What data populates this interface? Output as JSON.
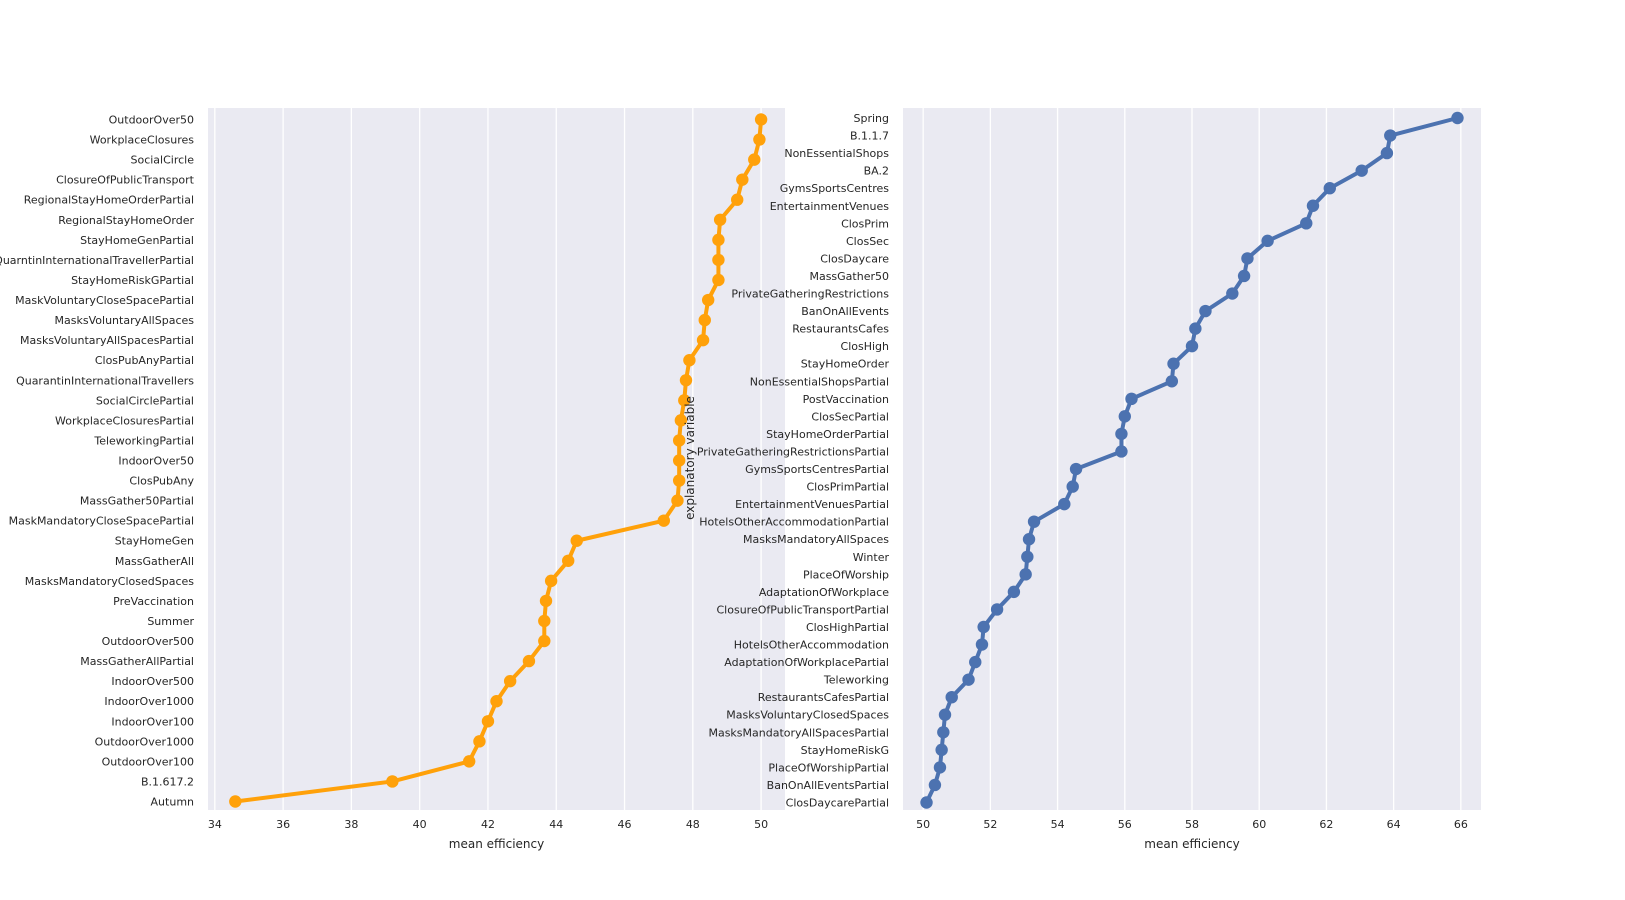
{
  "chart_data": [
    {
      "type": "line",
      "marker": "circle",
      "orientation": "horizontal",
      "xlabel": "mean efficiency",
      "ylabel": "explanatory variable",
      "xlim": [
        33.8,
        50.7
      ],
      "xticks": [
        34,
        36,
        38,
        40,
        42,
        44,
        46,
        48,
        50
      ],
      "color": "#FFA10A",
      "background": "#EAEAF2",
      "grid": true,
      "categories": [
        "OutdoorOver50",
        "WorkplaceClosures",
        "SocialCircle",
        "ClosureOfPublicTransport",
        "RegionalStayHomeOrderPartial",
        "RegionalStayHomeOrder",
        "StayHomeGenPartial",
        "QuarntinInternationalTravellerPartial",
        "StayHomeRiskGPartial",
        "MaskVoluntaryCloseSpacePartial",
        "MasksVoluntaryAllSpaces",
        "MasksVoluntaryAllSpacesPartial",
        "ClosPubAnyPartial",
        "QuarantinInternationalTravellers",
        "SocialCirclePartial",
        "WorkplaceClosuresPartial",
        "TeleworkingPartial",
        "IndoorOver50",
        "ClosPubAny",
        "MassGather50Partial",
        "MaskMandatoryCloseSpacePartial",
        "StayHomeGen",
        "MassGatherAll",
        "MasksMandatoryClosedSpaces",
        "PreVaccination",
        "Summer",
        "OutdoorOver500",
        "MassGatherAllPartial",
        "IndoorOver500",
        "IndoorOver1000",
        "IndoorOver100",
        "OutdoorOver1000",
        "OutdoorOver100",
        "B.1.617.2",
        "Autumn"
      ],
      "values": [
        50.0,
        49.95,
        49.8,
        49.45,
        49.3,
        48.8,
        48.75,
        48.75,
        48.75,
        48.45,
        48.35,
        48.3,
        47.9,
        47.8,
        47.75,
        47.65,
        47.6,
        47.6,
        47.6,
        47.55,
        47.15,
        44.6,
        44.35,
        43.85,
        43.7,
        43.65,
        43.65,
        43.2,
        42.65,
        42.25,
        42.0,
        41.75,
        41.45,
        39.2,
        34.6
      ]
    },
    {
      "type": "line",
      "marker": "circle",
      "orientation": "horizontal",
      "xlabel": "mean efficiency",
      "xlim": [
        49.4,
        66.6
      ],
      "xticks": [
        50,
        52,
        54,
        56,
        58,
        60,
        62,
        64,
        66
      ],
      "color": "#4C72B0",
      "background": "#EAEAF2",
      "grid": true,
      "categories": [
        "Spring",
        "B.1.1.7",
        "NonEssentialShops",
        "BA.2",
        "GymsSportsCentres",
        "EntertainmentVenues",
        "ClosPrim",
        "ClosSec",
        "ClosDaycare",
        "MassGather50",
        "PrivateGatheringRestrictions",
        "BanOnAllEvents",
        "RestaurantsCafes",
        "ClosHigh",
        "StayHomeOrder",
        "NonEssentialShopsPartial",
        "PostVaccination",
        "ClosSecPartial",
        "StayHomeOrderPartial",
        "PrivateGatheringRestrictionsPartial",
        "GymsSportsCentresPartial",
        "ClosPrimPartial",
        "EntertainmentVenuesPartial",
        "HotelsOtherAccommodationPartial",
        "MasksMandatoryAllSpaces",
        "Winter",
        "PlaceOfWorship",
        "AdaptationOfWorkplace",
        "ClosureOfPublicTransportPartial",
        "ClosHighPartial",
        "HotelsOtherAccommodation",
        "AdaptationOfWorkplacePartial",
        "Teleworking",
        "RestaurantsCafesPartial",
        "MasksVoluntaryClosedSpaces",
        "MasksMandatoryAllSpacesPartial",
        "StayHomeRiskG",
        "PlaceOfWorshipPartial",
        "BanOnAllEventsPartial",
        "ClosDaycarePartial"
      ],
      "values": [
        65.9,
        63.9,
        63.8,
        63.05,
        62.1,
        61.6,
        61.4,
        60.25,
        59.65,
        59.55,
        59.2,
        58.4,
        58.1,
        58.0,
        57.45,
        57.4,
        56.2,
        56.0,
        55.9,
        55.9,
        54.55,
        54.45,
        54.2,
        53.3,
        53.15,
        53.1,
        53.05,
        52.7,
        52.2,
        51.8,
        51.75,
        51.55,
        51.35,
        50.85,
        50.65,
        50.6,
        50.55,
        50.5,
        50.35,
        50.1
      ]
    }
  ]
}
